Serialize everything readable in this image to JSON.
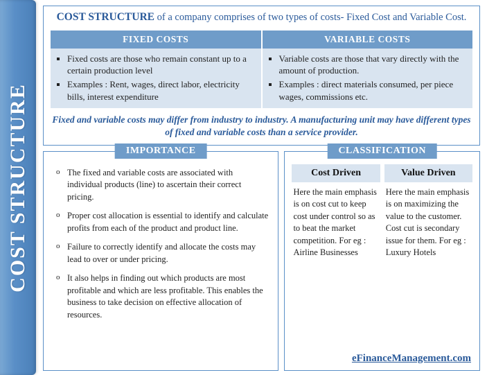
{
  "colors": {
    "accent": "#5a8fc7",
    "header_bg": "#6f9cc9",
    "cell_bg": "#d9e4f0",
    "text_accent": "#2a5a9a",
    "body_text": "#222222"
  },
  "sidebar": {
    "title": "COST STRUCTURE"
  },
  "intro": {
    "lead": "COST STRUCTURE",
    "rest": " of a company comprises of two types of costs- Fixed Cost and Variable Cost."
  },
  "costs": {
    "fixed_header": "FIXED COSTS",
    "variable_header": "VARIABLE COSTS",
    "fixed_points": [
      "Fixed costs are those who remain constant up to a certain production level",
      "Examples : Rent, wages, direct labor, electricity bills, interest expenditure"
    ],
    "variable_points": [
      "Variable costs are those that vary directly with the amount of production.",
      "Examples : direct materials consumed, per piece wages, commissions etc."
    ]
  },
  "note": "Fixed and variable costs may differ from industry to industry. A manufacturing unit may have different types of fixed and variable costs than a service provider.",
  "importance": {
    "title": "IMPORTANCE",
    "items": [
      "The fixed and variable costs are associated with individual products (line) to ascertain their correct pricing.",
      "Proper cost allocation is essential to identify and calculate profits from each of the product and product line.",
      "Failure to correctly identify and allocate the costs may lead to over or under pricing.",
      "It also helps in finding out which products are most profitable and which are less profitable. This enables the business to take decision on effective allocation of resources."
    ]
  },
  "classification": {
    "title": "CLASSIFICATION",
    "cost_driven": {
      "header": "Cost Driven",
      "body": "Here the main emphasis is on cost cut to keep cost under control so as to beat the market competition. For eg : Airline Businesses"
    },
    "value_driven": {
      "header": "Value Driven",
      "body": "Here the main emphasis is on maximizing the value to the customer. Cost cut is secondary issue for them. For eg : Luxury Hotels"
    }
  },
  "footer": {
    "link_text": "eFinanceManagement.com"
  }
}
